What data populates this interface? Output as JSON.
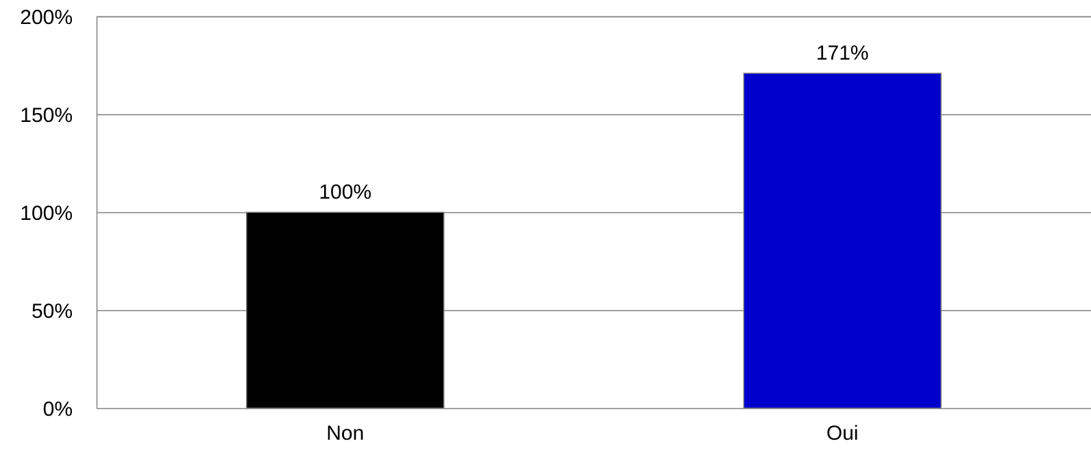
{
  "chart_data": {
    "type": "bar",
    "categories": [
      "Non",
      "Oui"
    ],
    "values": [
      100,
      171
    ],
    "data_labels": [
      "100%",
      "171%"
    ],
    "ylim": [
      0,
      200
    ],
    "yticks": [
      0,
      50,
      100,
      150,
      200
    ],
    "ytick_labels": [
      "0%",
      "50%",
      "100%",
      "150%",
      "200%"
    ],
    "grid": true,
    "bar_colors": [
      "#000000",
      "#0000CC"
    ],
    "gridline_color": "#808080",
    "axis_color": "#808080"
  }
}
